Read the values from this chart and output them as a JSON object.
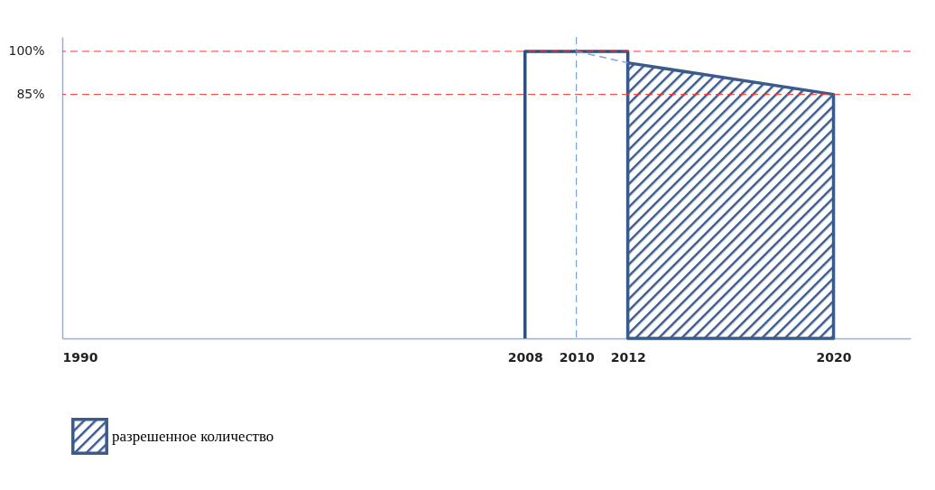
{
  "chart_data": {
    "type": "line",
    "xlim": [
      1990,
      2023
    ],
    "xticks": [
      1990,
      2008,
      2010,
      2012,
      2020
    ],
    "ylim": [
      0,
      105
    ],
    "yticks": [
      {
        "value": 85,
        "label": "85%"
      },
      {
        "value": 100,
        "label": "100%"
      }
    ],
    "series": [
      {
        "color": "#2f4f7f",
        "x": [
          2008,
          2008,
          2012,
          2012
        ],
        "values": [
          0,
          100,
          100,
          0
        ]
      },
      {
        "type": "area",
        "name": "разрешенное количество",
        "color": "#3b5b8c",
        "x": [
          2012,
          2020
        ],
        "values": [
          96,
          85
        ]
      },
      {
        "color": "#7fa6d6",
        "line_style": "dashed",
        "x": [
          2010,
          2012
        ],
        "values": [
          100,
          96
        ]
      }
    ],
    "ref_lines": [
      {
        "axis": "y",
        "value": 100,
        "color": "#ff3333",
        "line_style": "dashed"
      },
      {
        "axis": "y",
        "value": 85,
        "color": "#ff3333",
        "line_style": "dashed"
      },
      {
        "axis": "x",
        "value": 2010,
        "color": "#5b8fd6",
        "line_style": "dashed"
      }
    ],
    "grid": false,
    "legend": "bottom"
  }
}
